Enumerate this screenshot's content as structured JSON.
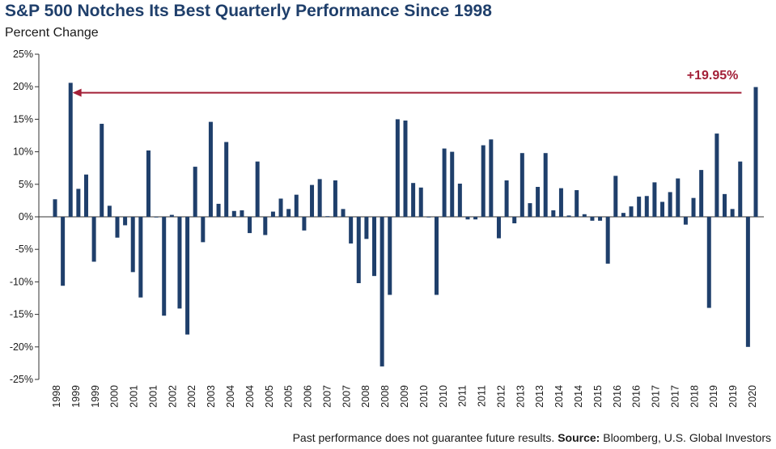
{
  "title": "S&P 500 Notches Its Best Quarterly Performance Since 1998",
  "subtitle": "Percent Change",
  "footer": {
    "disclaimer": "Past performance does not guarantee future results.",
    "source_label": "Source:",
    "source_text": "Bloomberg, U.S. Global Investors"
  },
  "colors": {
    "bar": "#1f3f6b",
    "annotation": "#a32038"
  },
  "annotation": {
    "label": "+19.95%",
    "value": 19.95,
    "from_index": 89,
    "to_index": 1
  },
  "chart_data": {
    "type": "bar",
    "ylim": [
      -25,
      25
    ],
    "y_ticks": [
      -25,
      -20,
      -15,
      -10,
      -5,
      0,
      5,
      10,
      15,
      20,
      25
    ],
    "y_tick_labels": [
      "-25%",
      "-20%",
      "-15%",
      "-10%",
      "-5%",
      "0%",
      "5%",
      "10%",
      "15%",
      "20%",
      "25%"
    ],
    "x_labels": [
      "1998",
      "1999",
      "1999",
      "2000",
      "2001",
      "2001",
      "2002",
      "2002",
      "2003",
      "2004",
      "2004",
      "2005",
      "2005",
      "2006",
      "2007",
      "2007",
      "2008",
      "2008",
      "2009",
      "2010",
      "2010",
      "2011",
      "2011",
      "2012",
      "2013",
      "2013",
      "2014",
      "2014",
      "2015",
      "2016",
      "2016",
      "2017",
      "2017",
      "2018",
      "2019",
      "2019",
      "2020"
    ],
    "first_quarter": "1998 Q2",
    "series": [
      {
        "values": [
          2.7,
          -10.6,
          20.6,
          4.3,
          6.5,
          -6.9,
          14.3,
          1.7,
          -3.2,
          -1.3,
          -8.5,
          -12.4,
          10.2,
          -0.1,
          -15.2,
          0.3,
          -14.1,
          -18.1,
          7.7,
          -3.9,
          14.6,
          2.0,
          11.5,
          0.9,
          1.0,
          -2.5,
          8.5,
          -2.8,
          0.8,
          2.8,
          1.2,
          3.4,
          -2.1,
          4.9,
          5.8,
          0.1,
          5.6,
          1.2,
          -4.1,
          -10.2,
          -3.4,
          -9.1,
          -23.0,
          -12.0,
          15.0,
          14.8,
          5.2,
          4.5,
          -0.1,
          -12.0,
          10.5,
          10.0,
          5.1,
          -0.4,
          -0.4,
          11.0,
          11.9,
          -3.3,
          5.6,
          -1.0,
          9.8,
          2.1,
          4.6,
          9.8,
          1.0,
          4.4,
          0.2,
          4.1,
          0.4,
          -0.6,
          -0.6,
          -7.2,
          6.3,
          0.6,
          1.6,
          3.1,
          3.2,
          5.3,
          2.3,
          3.8,
          5.9,
          -1.2,
          2.9,
          7.2,
          -14.0,
          12.8,
          3.5,
          1.2,
          8.5,
          -20.0,
          19.95
        ]
      }
    ]
  }
}
